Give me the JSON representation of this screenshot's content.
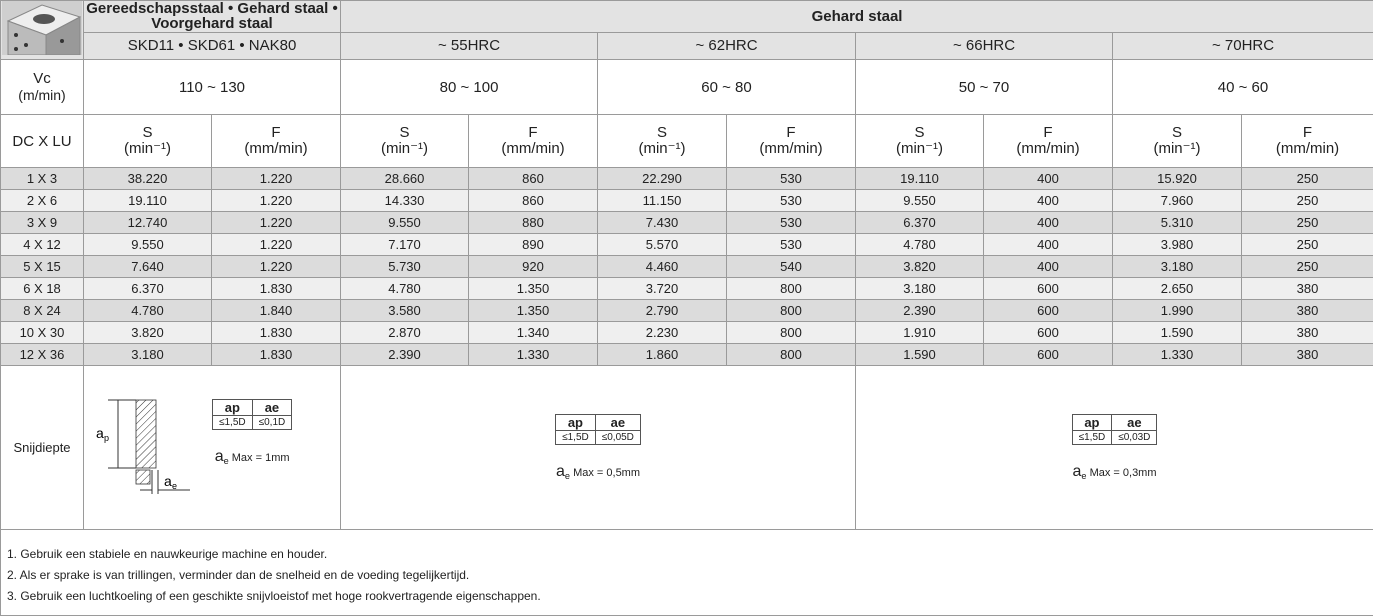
{
  "header": {
    "group1_title": "Gereedschapsstaal • Gehard staal • Voorgehard staal",
    "group1_sub": "SKD11 • SKD61 • NAK80",
    "group2_title": "Gehard staal",
    "hardness": [
      "~ 55HRC",
      "~ 62HRC",
      "~ 66HRC",
      "~ 70HRC"
    ]
  },
  "vc": {
    "label": "Vc",
    "unit": "(m/min)",
    "values": [
      "110 ~ 130",
      "80 ~ 100",
      "60 ~ 80",
      "50 ~ 70",
      "40 ~ 60"
    ]
  },
  "columns": {
    "label": "DC X LU",
    "s": "S",
    "s_unit": "(min⁻¹)",
    "f": "F",
    "f_unit": "(mm/min)"
  },
  "rows": [
    [
      "1 X 3",
      "38.220",
      "1.220",
      "28.660",
      "860",
      "22.290",
      "530",
      "19.110",
      "400",
      "15.920",
      "250"
    ],
    [
      "2 X 6",
      "19.110",
      "1.220",
      "14.330",
      "860",
      "11.150",
      "530",
      "9.550",
      "400",
      "7.960",
      "250"
    ],
    [
      "3 X 9",
      "12.740",
      "1.220",
      "9.550",
      "880",
      "7.430",
      "530",
      "6.370",
      "400",
      "5.310",
      "250"
    ],
    [
      "4 X 12",
      "9.550",
      "1.220",
      "7.170",
      "890",
      "5.570",
      "530",
      "4.780",
      "400",
      "3.980",
      "250"
    ],
    [
      "5 X 15",
      "7.640",
      "1.220",
      "5.730",
      "920",
      "4.460",
      "540",
      "3.820",
      "400",
      "3.180",
      "250"
    ],
    [
      "6 X 18",
      "6.370",
      "1.830",
      "4.780",
      "1.350",
      "3.720",
      "800",
      "3.180",
      "600",
      "2.650",
      "380"
    ],
    [
      "8 X 24",
      "4.780",
      "1.840",
      "3.580",
      "1.350",
      "2.790",
      "800",
      "2.390",
      "600",
      "1.990",
      "380"
    ],
    [
      "10 X 30",
      "3.820",
      "1.830",
      "2.870",
      "1.340",
      "2.230",
      "800",
      "1.910",
      "600",
      "1.590",
      "380"
    ],
    [
      "12 X 36",
      "3.180",
      "1.830",
      "2.390",
      "1.330",
      "1.860",
      "800",
      "1.590",
      "600",
      "1.330",
      "380"
    ]
  ],
  "depth": {
    "label": "Snijdiepte",
    "ap_head": "ap",
    "ae_head": "ae",
    "symbol": "a",
    "sub_p": "p",
    "sub_e": "e",
    "blocks": [
      {
        "ap": "≤1,5D",
        "ae": "≤0,1D",
        "max": "Max = 1mm"
      },
      {
        "ap": "≤1,5D",
        "ae": "≤0,05D",
        "max": "Max = 0,5mm"
      },
      {
        "ap": "≤1,5D",
        "ae": "≤0,03D",
        "max": "Max = 0,3mm"
      }
    ]
  },
  "notes": [
    "1. Gebruik een stabiele en nauwkeurige machine en houder.",
    "2. Als er sprake is van trillingen, verminder dan de snelheid en de voeding tegelijkertijd.",
    "3. Gebruik een luchtkoeling of een geschikte snijvloeistof met hoge rookvertragende eigenschappen."
  ]
}
